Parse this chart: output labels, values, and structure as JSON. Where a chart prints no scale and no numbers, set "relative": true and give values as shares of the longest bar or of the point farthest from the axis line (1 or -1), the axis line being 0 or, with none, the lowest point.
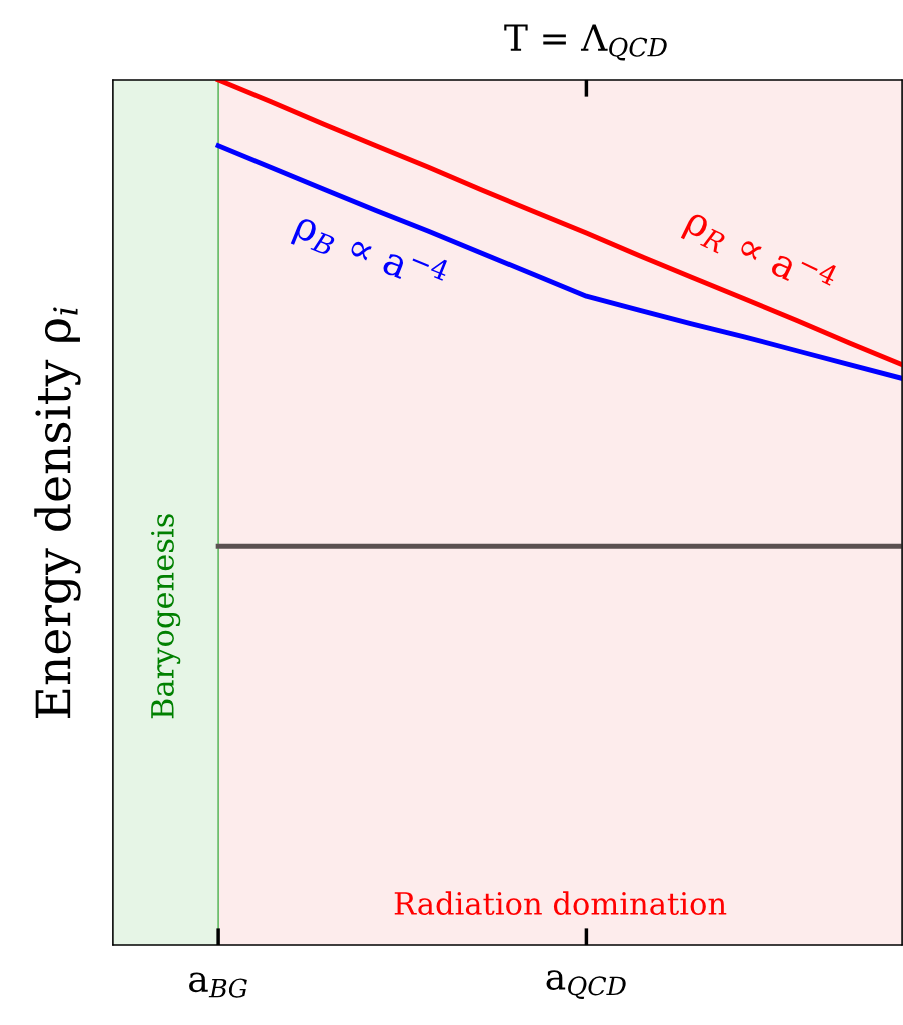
{
  "chart_data": {
    "type": "line",
    "relative": true,
    "ylabel": "Energy density ρ$_{i}$",
    "categories": [
      null,
      null,
      "a$_{BG}$",
      null,
      null,
      null,
      null,
      null,
      null,
      "a$_{QCD}$",
      null,
      null,
      null,
      null,
      null,
      null
    ],
    "grid": false,
    "legend": false,
    "marker": "none",
    "line_style": "solid",
    "series": [
      {
        "type": "area",
        "name": "Baryogenesis",
        "color": "#e6f5e6",
        "values": [
          1,
          1,
          1,
          null,
          null,
          null,
          null,
          null,
          null,
          null,
          null,
          null,
          null,
          null,
          null,
          null
        ]
      },
      {
        "type": "area",
        "name": "Radiation domination",
        "color": "#fdecec",
        "values": [
          null,
          null,
          1,
          1,
          1,
          1,
          1,
          1,
          1,
          1,
          1,
          1,
          1,
          1,
          1,
          1
        ]
      },
      {
        "color": "#ff0000",
        "values": [
          null,
          null,
          1.0,
          0.975,
          0.949,
          0.924,
          0.899,
          0.873,
          0.848,
          0.823,
          0.797,
          0.772,
          0.747,
          0.722,
          0.696,
          0.671
        ]
      },
      {
        "color": "#0000ff",
        "values": [
          null,
          null,
          0.924,
          0.899,
          0.874,
          0.849,
          0.825,
          0.8,
          0.775,
          0.75,
          0.734,
          0.718,
          0.703,
          0.687,
          0.671,
          0.655
        ]
      },
      {
        "color": "#5a5050",
        "values": [
          null,
          null,
          0.461,
          0.461,
          0.461,
          0.461,
          0.461,
          0.461,
          0.461,
          0.461,
          0.461,
          0.461,
          0.461,
          0.461,
          0.461,
          0.461
        ]
      }
    ],
    "annotations": [
      "T = Λ$_{QCD}$",
      "ρ$_{B}$ ∝ a$^{−4}$",
      "ρ$_{R}$ ∝ a$^{−4}$"
    ]
  }
}
